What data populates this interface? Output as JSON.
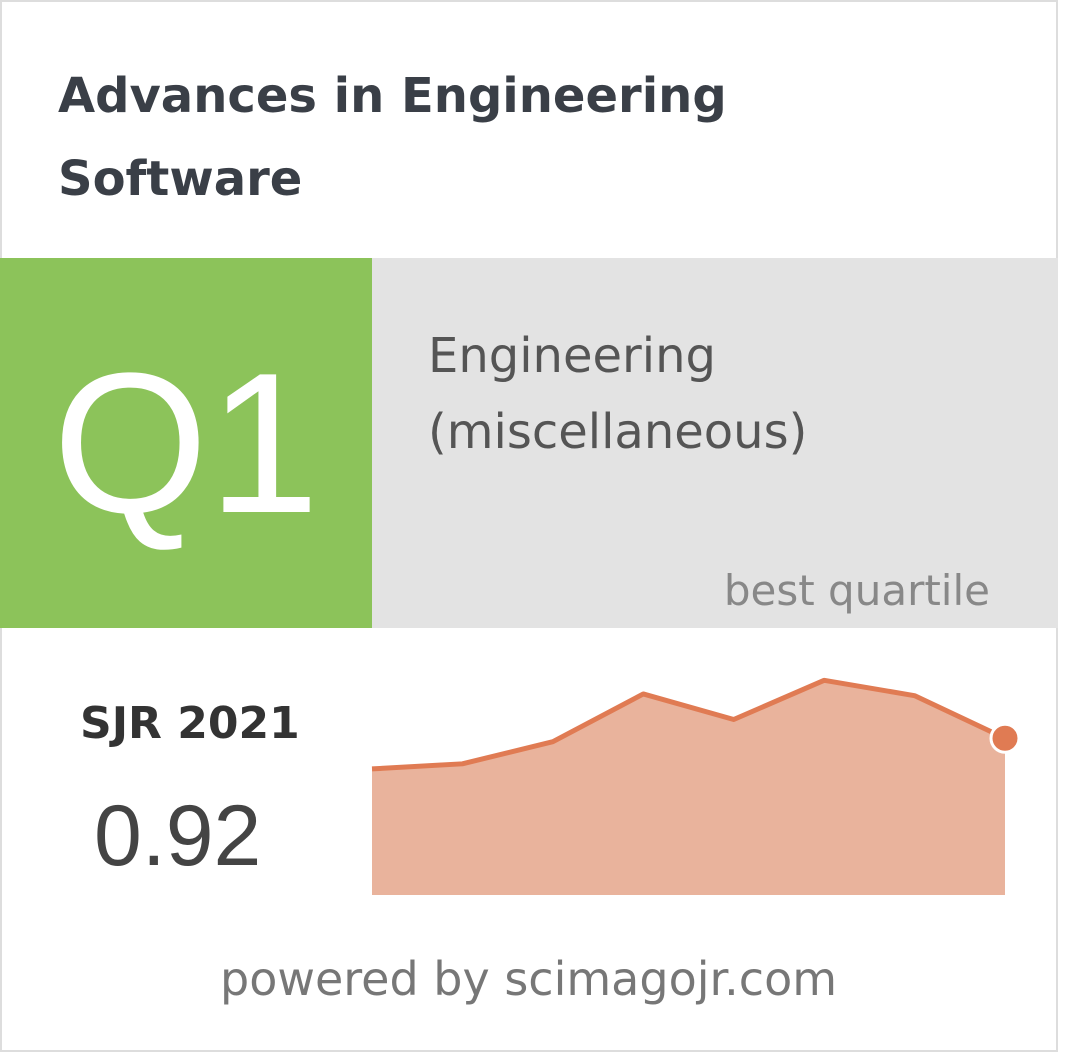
{
  "title_lines": [
    "Advances in Engineering",
    "Software"
  ],
  "quartile": {
    "label": "Q1",
    "category_lines": [
      "Engineering",
      "(miscellaneous)"
    ],
    "caption": "best quartile"
  },
  "sjr": {
    "label": "SJR 2021",
    "value": 0.92
  },
  "footer": "powered by scimagojr.com",
  "chart_data": {
    "type": "area",
    "categories": [
      null,
      null,
      null,
      null,
      null,
      null,
      null,
      null
    ],
    "values": [
      0.74,
      0.77,
      0.9,
      1.18,
      1.03,
      1.26,
      1.17,
      0.92
    ],
    "ylim": [
      0,
      1.35
    ],
    "line_color": "#e07b53",
    "fill_color": "#e9b39c"
  }
}
